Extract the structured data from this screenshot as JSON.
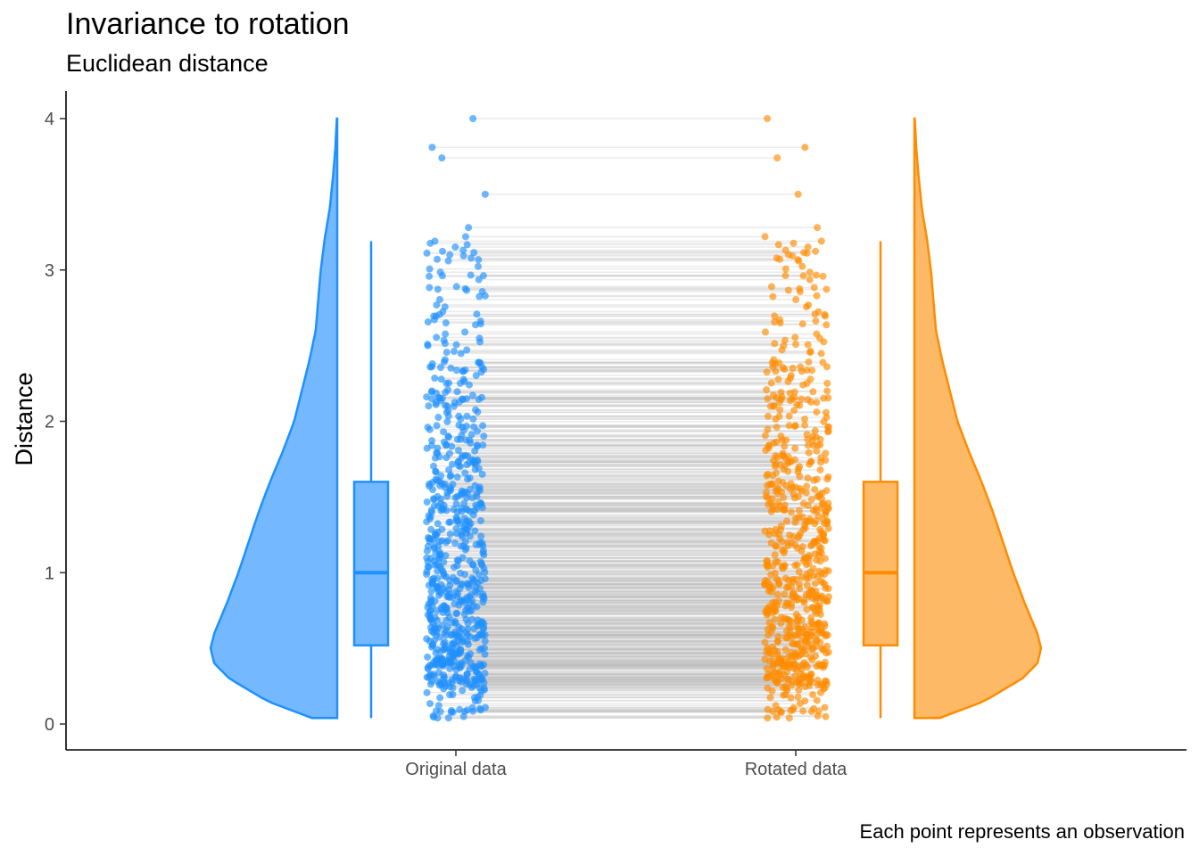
{
  "chart_data": {
    "type": "raincloud",
    "title": "Invariance to rotation",
    "subtitle": "Euclidean distance",
    "ylabel": "Distance",
    "xlabel": "",
    "caption": "Each point represents an observation",
    "categories": [
      "Original data",
      "Rotated data"
    ],
    "ylim": [
      0,
      4
    ],
    "yticks": [
      0,
      1,
      2,
      3,
      4
    ],
    "grid": false,
    "legend": "none",
    "paired_lines": true,
    "series": [
      {
        "category": "Original data",
        "color": "#1E90FF",
        "fill": "#74B9FF",
        "box": {
          "min": 0.04,
          "q1": 0.52,
          "median": 1.0,
          "q3": 1.6,
          "max": 3.19
        },
        "violin_side": "left"
      },
      {
        "category": "Rotated data",
        "color": "#FF8C00",
        "fill": "#FDB966",
        "box": {
          "min": 0.04,
          "q1": 0.52,
          "median": 1.0,
          "q3": 1.6,
          "max": 3.19
        },
        "violin_side": "right"
      }
    ],
    "density": {
      "y": [
        0.04,
        0.15,
        0.3,
        0.4,
        0.5,
        0.6,
        0.8,
        1.0,
        1.2,
        1.4,
        1.6,
        1.8,
        2.0,
        2.2,
        2.4,
        2.6,
        2.8,
        3.0,
        3.2,
        3.4,
        3.6,
        3.8,
        4.0
      ],
      "value": [
        0.2,
        0.55,
        0.85,
        0.97,
        1.0,
        0.97,
        0.87,
        0.78,
        0.7,
        0.62,
        0.53,
        0.43,
        0.34,
        0.28,
        0.22,
        0.17,
        0.15,
        0.13,
        0.1,
        0.06,
        0.035,
        0.015,
        0.003
      ]
    },
    "highlighted_points": [
      0.04,
      0.04,
      3.1,
      3.19,
      3.22,
      3.28,
      3.5,
      3.74,
      3.81,
      4.0
    ]
  }
}
